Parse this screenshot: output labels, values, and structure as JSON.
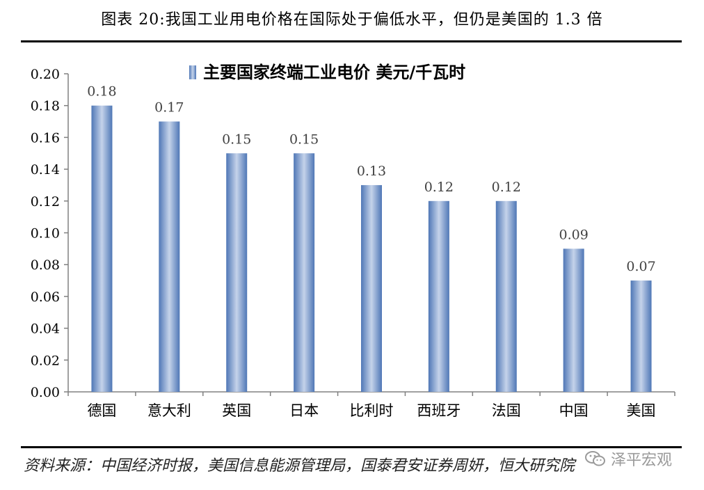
{
  "caption": "图表 20:我国工业用电价格在国际处于偏低水平，但仍是美国的 1.3 倍",
  "source": "资料来源：中国经济时报，美国信息能源管理局，国泰君安证券周妍，恒大研究院",
  "watermark": {
    "text": "泽平宏观",
    "icon": "wechat-icon"
  },
  "colors": {
    "bar": "#4f77b6",
    "bar_light": "#c5d3ea",
    "axis": "#808080"
  },
  "chart_data": {
    "type": "bar",
    "legend": {
      "label": "主要国家终端工业电价  美元/千瓦时",
      "placement": "top"
    },
    "categories": [
      "德国",
      "意大利",
      "英国",
      "日本",
      "比利时",
      "西班牙",
      "法国",
      "中国",
      "美国"
    ],
    "series": [
      {
        "values": [
          0.18,
          0.17,
          0.15,
          0.15,
          0.13,
          0.12,
          0.12,
          0.09,
          0.07
        ],
        "labels": [
          "0.18",
          "0.17",
          "0.15",
          "0.15",
          "0.13",
          "0.12",
          "0.12",
          "0.09",
          "0.07"
        ]
      }
    ],
    "ylim": [
      0,
      0.2
    ],
    "yticks": [
      "0.00",
      "0.02",
      "0.04",
      "0.06",
      "0.08",
      "0.10",
      "0.12",
      "0.14",
      "0.16",
      "0.18",
      "0.20"
    ],
    "grid": false
  }
}
